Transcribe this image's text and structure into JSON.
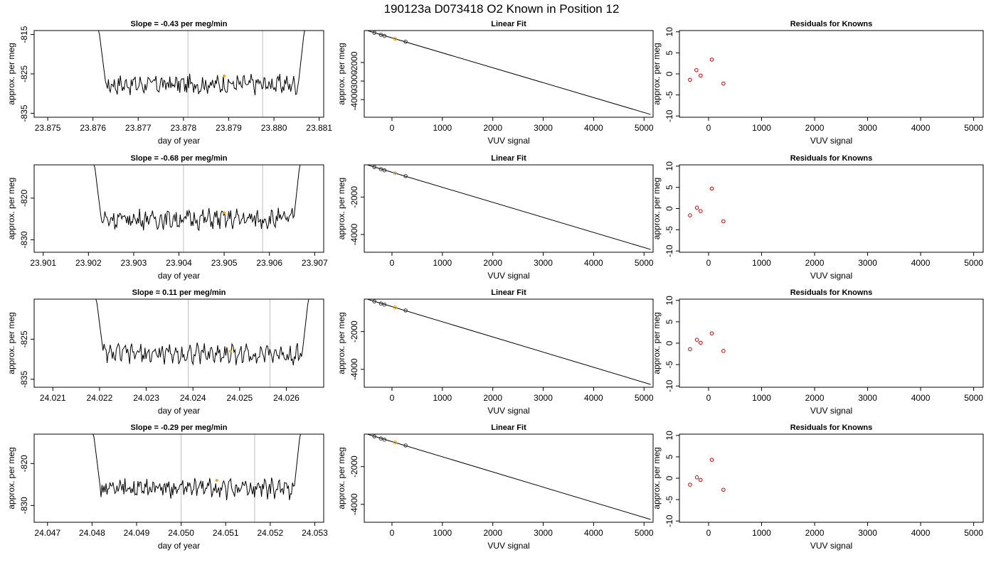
{
  "page_title": "190123a     D073418   O2 Known in Position  12",
  "colors": {
    "line": "#000000",
    "vline": "#bebebe",
    "highlight": "#ffa500",
    "residual": "#cd0000"
  },
  "chart_data": [
    {
      "type": "line",
      "row": 1,
      "title": "Slope =  -0.43  per meg/min",
      "xlabel": "day of year",
      "ylabel": "approx. per meg",
      "xlim": [
        23.8747,
        23.8811
      ],
      "ylim": [
        -836,
        -814
      ],
      "xticks": [
        "23.875",
        "23.876",
        "23.877",
        "23.878",
        "23.879",
        "23.880",
        "23.881"
      ],
      "yticks": [
        "-815",
        "-825",
        "-835"
      ],
      "series_start": 23.8761,
      "series_end": 23.8807,
      "vlines": [
        23.8781,
        23.87975
      ],
      "highlight": {
        "x": 23.8789,
        "y": -825.5
      }
    },
    {
      "type": "scatter",
      "row": 1,
      "title": "Linear Fit",
      "xlabel": "VUV signal",
      "ylabel": "approx. per meg",
      "xlim": [
        -550,
        5180
      ],
      "ylim": [
        -4950,
        -280
      ],
      "xticks": [
        "0",
        "1000",
        "2000",
        "3000",
        "4000",
        "5000"
      ],
      "yticks": [
        "-2000",
        "-3000",
        "-4000"
      ],
      "points": [
        {
          "x": -350,
          "y": -400
        },
        {
          "x": -220,
          "y": -510
        },
        {
          "x": -150,
          "y": -570
        },
        {
          "x": 60,
          "y": -720
        },
        {
          "x": 270,
          "y": -880
        }
      ],
      "highlight_index": 3,
      "fit": [
        {
          "x": -480,
          "y": -290
        },
        {
          "x": 5130,
          "y": -4800
        }
      ]
    },
    {
      "type": "scatter",
      "row": 1,
      "title": "Residuals for Knowns",
      "xlabel": "VUV signal",
      "ylabel": "approx. per meg",
      "xlim": [
        -550,
        5180
      ],
      "ylim": [
        -10.3,
        10.3
      ],
      "xticks": [
        "0",
        "1000",
        "2000",
        "3000",
        "4000",
        "5000"
      ],
      "yticks": [
        "-10",
        "-5",
        "0",
        "5",
        "10"
      ],
      "points": [
        {
          "x": -350,
          "y": -1.4
        },
        {
          "x": -230,
          "y": 0.9
        },
        {
          "x": -150,
          "y": -0.4
        },
        {
          "x": 60,
          "y": 3.4
        },
        {
          "x": 280,
          "y": -2.3
        }
      ]
    },
    {
      "type": "line",
      "row": 2,
      "title": "Slope =  -0.68  per meg/min",
      "xlabel": "day of year",
      "ylabel": "approx. per meg",
      "xlim": [
        23.9008,
        23.9072
      ],
      "ylim": [
        -833,
        -812
      ],
      "xticks": [
        "23.901",
        "23.902",
        "23.903",
        "23.904",
        "23.905",
        "23.906",
        "23.907"
      ],
      "yticks": [
        "-820",
        "-830"
      ],
      "series_start": 23.9021,
      "series_end": 23.9067,
      "vlines": [
        23.9041,
        23.90585
      ],
      "highlight": {
        "x": 23.905,
        "y": -823.5
      }
    },
    {
      "type": "scatter",
      "row": 2,
      "title": "Linear Fit",
      "xlabel": "VUV signal",
      "ylabel": "approx. per meg",
      "xlim": [
        -550,
        5180
      ],
      "ylim": [
        -4950,
        -280
      ],
      "xticks": [
        "0",
        "1000",
        "2000",
        "3000",
        "4000",
        "5000"
      ],
      "yticks": [
        "-2000",
        "-4000"
      ],
      "points": [
        {
          "x": -350,
          "y": -400
        },
        {
          "x": -220,
          "y": -510
        },
        {
          "x": -150,
          "y": -570
        },
        {
          "x": 60,
          "y": -720
        },
        {
          "x": 270,
          "y": -880
        }
      ],
      "highlight_index": 3,
      "fit": [
        {
          "x": -480,
          "y": -290
        },
        {
          "x": 5130,
          "y": -4800
        }
      ]
    },
    {
      "type": "scatter",
      "row": 2,
      "title": "Residuals for Knowns",
      "xlabel": "VUV signal",
      "ylabel": "approx. per meg",
      "xlim": [
        -550,
        5180
      ],
      "ylim": [
        -10.3,
        10.3
      ],
      "xticks": [
        "0",
        "1000",
        "2000",
        "3000",
        "4000",
        "5000"
      ],
      "yticks": [
        "-10",
        "-5",
        "0",
        "5",
        "10"
      ],
      "points": [
        {
          "x": -350,
          "y": -1.6
        },
        {
          "x": -220,
          "y": 0.2
        },
        {
          "x": -150,
          "y": -0.6
        },
        {
          "x": 60,
          "y": 4.7
        },
        {
          "x": 280,
          "y": -3.0
        }
      ]
    },
    {
      "type": "line",
      "row": 3,
      "title": "Slope =  0.11  per meg/min",
      "xlabel": "day of year",
      "ylabel": "approx. per meg",
      "xlim": [
        24.0206,
        24.0268
      ],
      "ylim": [
        -837,
        -815
      ],
      "xticks": [
        "24.021",
        "24.022",
        "24.023",
        "24.024",
        "24.025",
        "24.026"
      ],
      "yticks": [
        "-825",
        "-835"
      ],
      "series_start": 24.0219,
      "series_end": 24.0265,
      "vlines": [
        24.0239,
        24.02565
      ],
      "highlight": {
        "x": 24.0248,
        "y": -828
      }
    },
    {
      "type": "scatter",
      "row": 3,
      "title": "Linear Fit",
      "xlabel": "VUV signal",
      "ylabel": "approx. per meg",
      "xlim": [
        -550,
        5180
      ],
      "ylim": [
        -4950,
        -280
      ],
      "xticks": [
        "0",
        "1000",
        "2000",
        "3000",
        "4000",
        "5000"
      ],
      "yticks": [
        "-2000",
        "-4000"
      ],
      "points": [
        {
          "x": -350,
          "y": -400
        },
        {
          "x": -220,
          "y": -510
        },
        {
          "x": -150,
          "y": -570
        },
        {
          "x": 60,
          "y": -720
        },
        {
          "x": 270,
          "y": -880
        }
      ],
      "highlight_index": 3,
      "fit": [
        {
          "x": -480,
          "y": -290
        },
        {
          "x": 5130,
          "y": -4800
        }
      ]
    },
    {
      "type": "scatter",
      "row": 3,
      "title": "Residuals for Knowns",
      "xlabel": "VUV signal",
      "ylabel": "approx. per meg",
      "xlim": [
        -550,
        5180
      ],
      "ylim": [
        -10.3,
        10.3
      ],
      "xticks": [
        "0",
        "1000",
        "2000",
        "3000",
        "4000",
        "5000"
      ],
      "yticks": [
        "-10",
        "-5",
        "0",
        "5",
        "10"
      ],
      "points": [
        {
          "x": -350,
          "y": -1.4
        },
        {
          "x": -220,
          "y": 0.8
        },
        {
          "x": -150,
          "y": 0.1
        },
        {
          "x": 60,
          "y": 2.3
        },
        {
          "x": 280,
          "y": -1.8
        }
      ]
    },
    {
      "type": "line",
      "row": 4,
      "title": "Slope =  -0.29  per meg/min",
      "xlabel": "day of year",
      "ylabel": "approx. per meg",
      "xlim": [
        24.0467,
        24.0532
      ],
      "ylim": [
        -834,
        -813
      ],
      "xticks": [
        "24.047",
        "24.048",
        "24.049",
        "24.050",
        "24.051",
        "24.052",
        "24.053"
      ],
      "yticks": [
        "-820",
        "-830"
      ],
      "series_start": 24.048,
      "series_end": 24.0527,
      "vlines": [
        24.05,
        24.05165
      ],
      "highlight": {
        "x": 24.0508,
        "y": -824
      }
    },
    {
      "type": "scatter",
      "row": 4,
      "title": "Linear Fit",
      "xlabel": "VUV signal",
      "ylabel": "approx. per meg",
      "xlim": [
        -550,
        5180
      ],
      "ylim": [
        -4950,
        -280
      ],
      "xticks": [
        "0",
        "1000",
        "2000",
        "3000",
        "4000",
        "5000"
      ],
      "yticks": [
        "-2000",
        "-4000"
      ],
      "points": [
        {
          "x": -350,
          "y": -400
        },
        {
          "x": -220,
          "y": -510
        },
        {
          "x": -150,
          "y": -570
        },
        {
          "x": 60,
          "y": -720
        },
        {
          "x": 270,
          "y": -880
        }
      ],
      "highlight_index": 3,
      "fit": [
        {
          "x": -480,
          "y": -290
        },
        {
          "x": 5130,
          "y": -4800
        }
      ]
    },
    {
      "type": "scatter",
      "row": 4,
      "title": "Residuals for Knowns",
      "xlabel": "VUV signal",
      "ylabel": "approx. per meg",
      "xlim": [
        -550,
        5180
      ],
      "ylim": [
        -10.3,
        10.3
      ],
      "xticks": [
        "0",
        "1000",
        "2000",
        "3000",
        "4000",
        "5000"
      ],
      "yticks": [
        "-10",
        "-5",
        "0",
        "5",
        "10"
      ],
      "points": [
        {
          "x": -350,
          "y": -1.5
        },
        {
          "x": -220,
          "y": 0.2
        },
        {
          "x": -150,
          "y": -0.4
        },
        {
          "x": 60,
          "y": 4.3
        },
        {
          "x": 280,
          "y": -2.7
        }
      ]
    }
  ]
}
